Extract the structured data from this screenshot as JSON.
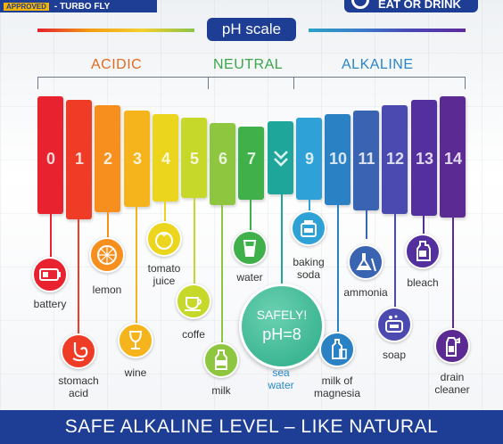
{
  "header": {
    "badge_approved": "APPROVED",
    "badge_text": "- TURBO FLY",
    "top_right": "EAT OR DRINK",
    "title": "pH scale"
  },
  "groups": {
    "acidic": "ACIDIC",
    "neutral": "NEUTRAL",
    "alkaline": "ALKALINE"
  },
  "scale": {
    "numbers": [
      "0",
      "1",
      "2",
      "3",
      "4",
      "5",
      "6",
      "7",
      "",
      "9",
      "10",
      "11",
      "12",
      "13",
      "14"
    ],
    "colors": [
      "#e8222e",
      "#ee3c27",
      "#f68f1e",
      "#f5b41c",
      "#ecd51d",
      "#c6d82a",
      "#8ec63f",
      "#3fb04a",
      "#1fa69a",
      "#2ea2d6",
      "#2a82c4",
      "#3a63b2",
      "#4a4ab0",
      "#542f9e",
      "#5b2a93"
    ]
  },
  "items": {
    "battery": "battery",
    "stomach_l1": "stomach",
    "stomach_l2": "acid",
    "lemon": "lemon",
    "wine": "wine",
    "tomato_l1": "tomato",
    "tomato_l2": "juice",
    "coffe": "coffe",
    "milk": "milk",
    "water": "water",
    "safe_l1": "SAFELY!",
    "safe_l2": "pH=8",
    "sea_l1": "sea",
    "sea_l2": "water",
    "baking_l1": "baking",
    "baking_l2": "soda",
    "milkmag_l1": "milk of",
    "milkmag_l2": "magnesia",
    "ammonia": "ammonia",
    "soap": "soap",
    "bleach": "bleach",
    "drain_l1": "drain",
    "drain_l2": "cleaner"
  },
  "footer": {
    "text": "SAFE ALKALINE LEVEL  –  LIKE NATURAL"
  }
}
